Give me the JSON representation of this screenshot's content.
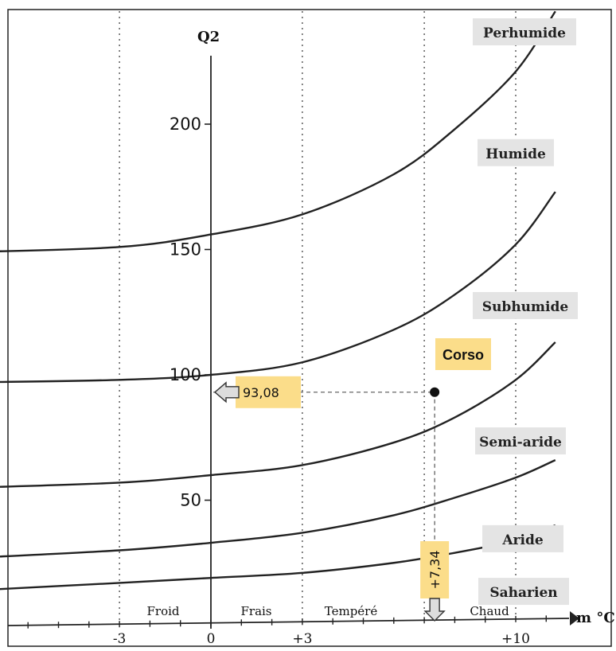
{
  "chart_data": {
    "type": "line",
    "title": "",
    "ylabel": "Q2",
    "xlabel": "m °C",
    "xlim": [
      -7.8,
      11.4
    ],
    "ylim": [
      0,
      240
    ],
    "x_ticks": [
      "-3",
      "0",
      "+3",
      "+10"
    ],
    "y_ticks": [
      "50",
      "100",
      "150",
      "200"
    ],
    "zones": [
      "Froid",
      "Frais",
      "Tempéré",
      "Chaud"
    ],
    "boundaries": [
      {
        "name": "Sahara/Aride",
        "x": [
          -7.8,
          -3,
          0,
          3,
          6,
          8,
          10,
          11.3
        ],
        "y": [
          14,
          17,
          19,
          21,
          25,
          29,
          34,
          40
        ]
      },
      {
        "name": "Aride/Semi-aride",
        "x": [
          -7.8,
          -3,
          0,
          3,
          6,
          8,
          10,
          11.3
        ],
        "y": [
          27,
          30,
          33,
          37,
          44,
          51,
          59,
          66
        ]
      },
      {
        "name": "Semi-aride/Subhumide",
        "x": [
          -7.8,
          -3,
          0,
          3,
          6,
          8,
          10,
          11.3
        ],
        "y": [
          55,
          57,
          60,
          64,
          73,
          83,
          98,
          113
        ]
      },
      {
        "name": "Subhumide/Humide",
        "x": [
          -7.8,
          -3,
          0,
          3,
          6,
          8,
          10,
          11.3
        ],
        "y": [
          97,
          98,
          100,
          105,
          118,
          132,
          152,
          173
        ]
      },
      {
        "name": "Humide/Perhumide",
        "x": [
          -7.8,
          -3,
          0,
          3,
          6,
          8,
          10,
          11.3
        ],
        "y": [
          149,
          151,
          156,
          164,
          180,
          198,
          221,
          245
        ]
      }
    ],
    "bioclimates": [
      {
        "label": "Perhumide",
        "y": 241
      },
      {
        "label": "Humide",
        "y": 188
      },
      {
        "label": "Subhumide",
        "y": 127
      },
      {
        "label": "Semi-aride",
        "y": 73
      },
      {
        "label": "Aride",
        "y": 34
      },
      {
        "label": "Saharien",
        "y": 13
      }
    ],
    "point": {
      "label": "Corso",
      "x": 7.34,
      "y": 93.08,
      "x_label": "+7,34",
      "y_label": "93,08"
    },
    "grid": false,
    "colors": {
      "curve": "#222222",
      "highlight": "#fbdd8a",
      "label_bg": "#e4e4e4",
      "point": "#111111"
    }
  }
}
